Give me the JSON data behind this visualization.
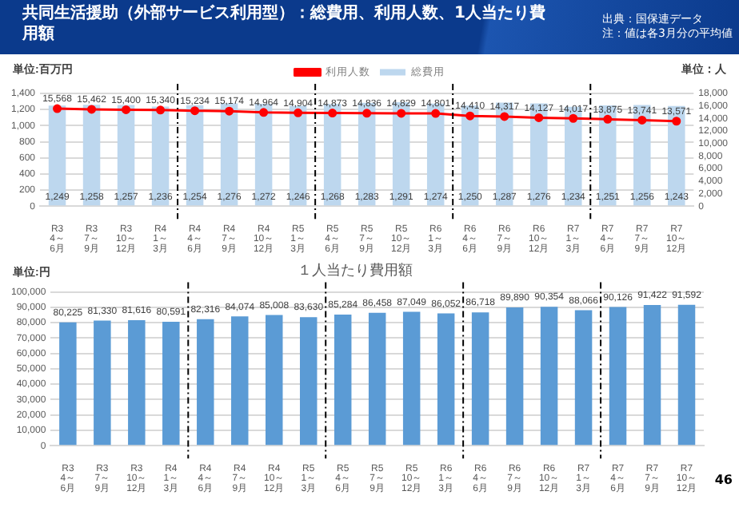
{
  "chart_data": [
    {
      "type": "bar",
      "title": "共同生活援助（外部サービス利用型）：総費用、利用人数、1人当たり費用額",
      "ylabel": "単位:百万円",
      "y2label": "単位：人",
      "annotations": [
        "出典：国保連データ",
        "注：値は各3月分の平均値"
      ],
      "categories": [
        "R3 4～6月",
        "R3 7～9月",
        "R3 10～12月",
        "R4 1～3月",
        "R4 4～6月",
        "R4 7～9月",
        "R4 10～12月",
        "R5 1～3月",
        "R5 4～6月",
        "R5 7～9月",
        "R5 10～12月",
        "R6 1～3月",
        "R6 4～6月",
        "R6 7～9月",
        "R6 10～12月",
        "R7 1～3月",
        "R7 4～6月",
        "R7 7～9月",
        "R7 10～12月"
      ],
      "series": [
        {
          "name": "総費用",
          "color": "#bdd7ee",
          "values": [
            1249,
            1258,
            1257,
            1236,
            1254,
            1276,
            1272,
            1246,
            1268,
            1283,
            1291,
            1274,
            1250,
            1287,
            1276,
            1234,
            1251,
            1256,
            1243
          ],
          "value_labels": [
            "1,249",
            "1,258",
            "1,257",
            "1,236",
            "1,254",
            "1,276",
            "1,272",
            "1,246",
            "1,268",
            "1,283",
            "1,291",
            "1,274",
            "1,250",
            "1,287",
            "1,276",
            "1,234",
            "1,251",
            "1,256",
            "1,243"
          ]
        },
        {
          "name": "利用人数",
          "type": "line",
          "axis": "y2",
          "color": "#ff0000",
          "values": [
            15568,
            15462,
            15400,
            15340,
            15234,
            15174,
            14964,
            14904,
            14873,
            14836,
            14829,
            14801,
            14410,
            14317,
            14127,
            14017,
            13875,
            13741,
            13571
          ],
          "value_labels": [
            "15,568",
            "15,462",
            "15,400",
            "15,340",
            "15,234",
            "15,174",
            "14,964",
            "14,904",
            "14,873",
            "14,836",
            "14,829",
            "14,801",
            "14,410",
            "14,317",
            "14,127",
            "14,017",
            "13,875",
            "13,741",
            "13,571"
          ]
        }
      ],
      "ylim": [
        0,
        1400
      ],
      "yticks": [
        0,
        200,
        400,
        600,
        800,
        {
          "value": 1000,
          "label": "1,000"
        },
        {
          "value": 1200,
          "label": "1,200"
        },
        {
          "value": 1400,
          "label": "1,400"
        }
      ],
      "y2lim": [
        0,
        18000
      ],
      "y2ticks": [
        0,
        {
          "value": 2000,
          "label": "2,000"
        },
        {
          "value": 4000,
          "label": "4,000"
        },
        {
          "value": 6000,
          "label": "6,000"
        },
        {
          "value": 8000,
          "label": "8,000"
        },
        {
          "value": 10000,
          "label": "10,000"
        },
        {
          "value": 12000,
          "label": "12,000"
        },
        {
          "value": 14000,
          "label": "14,000"
        },
        {
          "value": 16000,
          "label": "16,000"
        },
        {
          "value": 18000,
          "label": "18,000"
        }
      ],
      "grid": "y",
      "legend": "top",
      "marker": "circle"
    },
    {
      "type": "bar",
      "title": "１人当たり費用額",
      "ylabel": "単位:円",
      "annotations": [
        "46"
      ],
      "categories": [
        "R3 4～6月",
        "R3 7～9月",
        "R3 10～12月",
        "R4 1～3月",
        "R4 4～6月",
        "R4 7～9月",
        "R4 10～12月",
        "R5 1～3月",
        "R5 4～6月",
        "R5 7～9月",
        "R5 10～12月",
        "R6 1～3月",
        "R6 4～6月",
        "R6 7～9月",
        "R6 10～12月",
        "R7 1～3月",
        "R7 4～6月",
        "R7 7～9月",
        "R7 10～12月"
      ],
      "values": [
        80225,
        81330,
        81616,
        80591,
        82316,
        84074,
        85008,
        83630,
        85284,
        86458,
        87049,
        86052,
        86718,
        89890,
        90354,
        88066,
        90126,
        91422,
        91592
      ],
      "value_labels": [
        "80,225",
        "81,330",
        "81,616",
        "80,591",
        "82,316",
        "84,074",
        "85,008",
        "83,630",
        "85,284",
        "86,458",
        "87,049",
        "86,052",
        "86,718",
        "89,890",
        "90,354",
        "88,066",
        "90,126",
        "91,422",
        "91,592"
      ],
      "color": "#5b9bd5",
      "ylim": [
        0,
        100000
      ],
      "yticks": [
        0,
        {
          "value": 10000,
          "label": "10,000"
        },
        {
          "value": 20000,
          "label": "20,000"
        },
        {
          "value": 30000,
          "label": "30,000"
        },
        {
          "value": 40000,
          "label": "40,000"
        },
        {
          "value": 50000,
          "label": "50,000"
        },
        {
          "value": 60000,
          "label": "60,000"
        },
        {
          "value": 70000,
          "label": "70,000"
        },
        {
          "value": 80000,
          "label": "80,000"
        },
        {
          "value": 90000,
          "label": "90,000"
        },
        {
          "value": 100000,
          "label": "100,000"
        }
      ],
      "grid": "y"
    }
  ]
}
